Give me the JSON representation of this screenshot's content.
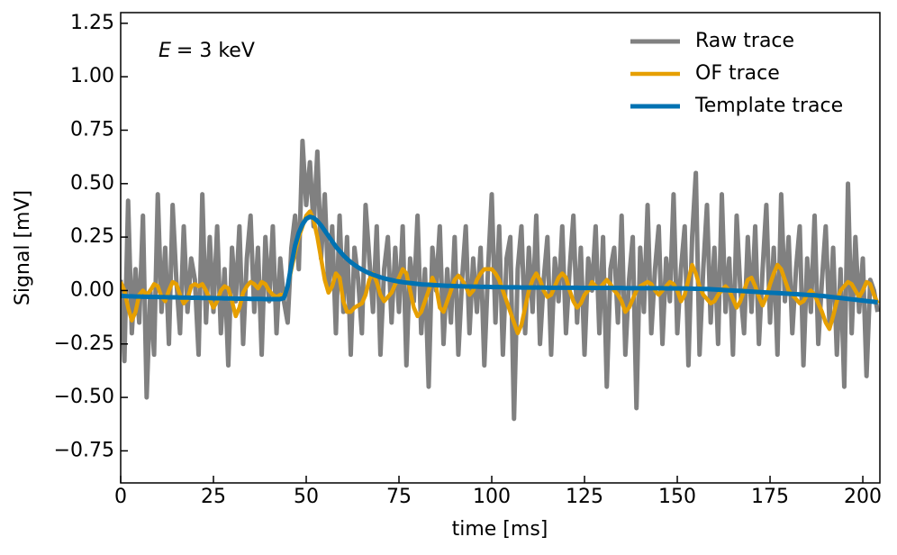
{
  "chart_data": {
    "type": "line",
    "xlabel": "time [ms]",
    "ylabel": "Signal [mV]",
    "annotation": {
      "variable": "E",
      "text": "= 3 keV"
    },
    "legend": "upper right",
    "xlim": [
      0,
      204.6
    ],
    "ylim": [
      -0.9,
      1.3
    ],
    "xticks": [
      0,
      25,
      50,
      75,
      100,
      125,
      150,
      175,
      200
    ],
    "yticks": [
      {
        "value": -0.75,
        "label": "−0.75"
      },
      {
        "value": -0.5,
        "label": "−0.50"
      },
      {
        "value": -0.25,
        "label": "−0.25"
      },
      {
        "value": 0,
        "label": "0.00"
      },
      {
        "value": 0.25,
        "label": "0.25"
      },
      {
        "value": 0.5,
        "label": "0.50"
      },
      {
        "value": 0.75,
        "label": "0.75"
      },
      {
        "value": 1,
        "label": "1.00"
      },
      {
        "value": 1.25,
        "label": "1.25"
      }
    ],
    "x": [
      0,
      1,
      2,
      3,
      4,
      5,
      6,
      7,
      8,
      9,
      10,
      11,
      12,
      13,
      14,
      15,
      16,
      17,
      18,
      19,
      20,
      21,
      22,
      23,
      24,
      25,
      26,
      27,
      28,
      29,
      30,
      31,
      32,
      33,
      34,
      35,
      36,
      37,
      38,
      39,
      40,
      41,
      42,
      43,
      44,
      45,
      46,
      47,
      48,
      49,
      50,
      51,
      52,
      53,
      54,
      55,
      56,
      57,
      58,
      59,
      60,
      61,
      62,
      63,
      64,
      65,
      66,
      67,
      68,
      69,
      70,
      71,
      72,
      73,
      74,
      75,
      76,
      77,
      78,
      79,
      80,
      81,
      82,
      83,
      84,
      85,
      86,
      87,
      88,
      89,
      90,
      91,
      92,
      93,
      94,
      95,
      96,
      97,
      98,
      99,
      100,
      101,
      102,
      103,
      104,
      105,
      106,
      107,
      108,
      109,
      110,
      111,
      112,
      113,
      114,
      115,
      116,
      117,
      118,
      119,
      120,
      121,
      122,
      123,
      124,
      125,
      126,
      127,
      128,
      129,
      130,
      131,
      132,
      133,
      134,
      135,
      136,
      137,
      138,
      139,
      140,
      141,
      142,
      143,
      144,
      145,
      146,
      147,
      148,
      149,
      150,
      151,
      152,
      153,
      154,
      155,
      156,
      157,
      158,
      159,
      160,
      161,
      162,
      163,
      164,
      165,
      166,
      167,
      168,
      169,
      170,
      171,
      172,
      173,
      174,
      175,
      176,
      177,
      178,
      179,
      180,
      181,
      182,
      183,
      184,
      185,
      186,
      187,
      188,
      189,
      190,
      191,
      192,
      193,
      194,
      195,
      196,
      197,
      198,
      199,
      200,
      201,
      202,
      203,
      204
    ],
    "series": [
      {
        "name": "Raw trace",
        "color": "#808080",
        "width": 5,
        "values": [
          0.05,
          -0.33,
          0.42,
          -0.2,
          0.1,
          -0.15,
          0.35,
          -0.5,
          0.0,
          -0.3,
          0.45,
          -0.1,
          0.2,
          -0.25,
          0.4,
          0.05,
          -0.2,
          0.3,
          -0.1,
          0.15,
          0.05,
          -0.3,
          0.45,
          -0.15,
          0.25,
          -0.1,
          0.3,
          -0.2,
          0.1,
          -0.35,
          0.2,
          -0.05,
          0.3,
          -0.25,
          0.15,
          0.35,
          -0.1,
          0.2,
          -0.3,
          0.25,
          -0.05,
          0.3,
          -0.2,
          0.15,
          -0.05,
          -0.15,
          0.2,
          0.35,
          0.1,
          0.7,
          0.4,
          0.6,
          0.3,
          0.65,
          0.15,
          0.45,
          0.0,
          0.3,
          -0.2,
          0.35,
          -0.1,
          0.25,
          -0.3,
          0.2,
          0.05,
          -0.2,
          0.4,
          0.15,
          -0.1,
          0.3,
          -0.3,
          0.1,
          0.25,
          -0.15,
          0.2,
          -0.1,
          0.3,
          -0.35,
          0.15,
          -0.05,
          0.35,
          -0.2,
          0.1,
          -0.45,
          0.2,
          0.0,
          0.3,
          -0.25,
          0.1,
          -0.15,
          0.25,
          -0.3,
          0.05,
          0.3,
          -0.2,
          0.15,
          -0.1,
          0.2,
          -0.35,
          0.1,
          0.45,
          -0.15,
          0.3,
          -0.3,
          0.15,
          0.25,
          -0.6,
          0.1,
          0.3,
          -0.2,
          0.2,
          -0.1,
          0.35,
          -0.25,
          0.05,
          0.25,
          -0.3,
          0.15,
          -0.05,
          0.3,
          -0.2,
          0.1,
          0.35,
          -0.15,
          0.2,
          -0.3,
          0.15,
          0.0,
          0.3,
          -0.2,
          0.25,
          -0.45,
          0.1,
          0.2,
          -0.15,
          0.35,
          -0.3,
          0.05,
          0.25,
          -0.55,
          0.2,
          -0.1,
          0.4,
          -0.2,
          0.1,
          0.3,
          -0.25,
          0.15,
          -0.05,
          0.45,
          -0.2,
          0.1,
          0.3,
          -0.35,
          0.25,
          0.55,
          -0.3,
          0.1,
          0.4,
          -0.15,
          0.2,
          -0.25,
          0.45,
          -0.1,
          0.15,
          -0.3,
          0.35,
          0.0,
          -0.2,
          0.25,
          -0.1,
          0.3,
          -0.25,
          0.1,
          0.4,
          -0.15,
          0.2,
          -0.3,
          0.45,
          -0.05,
          0.25,
          -0.2,
          0.1,
          0.3,
          -0.35,
          0.15,
          -0.1,
          0.35,
          -0.25,
          0.05,
          0.3,
          -0.15,
          0.2,
          -0.3,
          0.1,
          -0.45,
          0.5,
          -0.2,
          0.25,
          -0.1,
          0.15,
          -0.4,
          0.05,
          0.0,
          -0.1
        ]
      },
      {
        "name": "OF trace",
        "color": "#e69f00",
        "width": 4.5,
        "values": [
          0.04,
          0.0,
          -0.08,
          -0.14,
          -0.1,
          -0.02,
          0.0,
          -0.02,
          0.0,
          0.03,
          0.02,
          -0.03,
          -0.05,
          0.0,
          0.04,
          0.03,
          -0.02,
          -0.06,
          -0.04,
          0.02,
          0.03,
          0.02,
          0.03,
          0.0,
          -0.04,
          -0.08,
          -0.05,
          0.0,
          0.02,
          0.01,
          -0.05,
          -0.12,
          -0.08,
          -0.01,
          0.02,
          0.04,
          0.03,
          0.01,
          0.04,
          0.03,
          0.0,
          -0.02,
          -0.03,
          -0.02,
          -0.02,
          0.02,
          0.1,
          0.18,
          0.25,
          0.3,
          0.35,
          0.37,
          0.33,
          0.25,
          0.15,
          0.05,
          -0.01,
          0.02,
          0.08,
          0.06,
          -0.05,
          -0.1,
          -0.1,
          -0.08,
          -0.07,
          -0.06,
          -0.02,
          0.05,
          0.08,
          0.04,
          -0.02,
          -0.05,
          -0.03,
          -0.01,
          0.03,
          0.06,
          0.1,
          0.08,
          0.0,
          -0.08,
          -0.12,
          -0.1,
          -0.05,
          0.0,
          0.06,
          0.02,
          -0.08,
          -0.1,
          -0.05,
          0.0,
          0.05,
          0.07,
          0.05,
          0.02,
          -0.02,
          0.0,
          0.05,
          0.08,
          0.1,
          0.1,
          0.1,
          0.08,
          0.05,
          0.0,
          -0.05,
          -0.1,
          -0.15,
          -0.2,
          -0.16,
          -0.08,
          0.0,
          0.05,
          0.08,
          0.05,
          0.0,
          -0.03,
          -0.02,
          0.02,
          0.06,
          0.08,
          0.06,
          0.0,
          -0.05,
          -0.08,
          -0.06,
          -0.02,
          0.0,
          0.04,
          0.02,
          0.01,
          0.03,
          0.05,
          0.03,
          0.0,
          -0.02,
          -0.05,
          -0.1,
          -0.08,
          -0.04,
          0.0,
          0.02,
          0.03,
          0.04,
          0.03,
          0.0,
          -0.02,
          0.0,
          0.02,
          0.04,
          0.03,
          0.0,
          -0.05,
          -0.02,
          0.05,
          0.12,
          0.08,
          0.02,
          -0.02,
          -0.04,
          -0.06,
          -0.05,
          -0.02,
          0.0,
          0.02,
          0.0,
          -0.04,
          -0.08,
          -0.05,
          0.0,
          0.05,
          0.06,
          0.02,
          -0.03,
          -0.07,
          -0.03,
          0.03,
          0.08,
          0.12,
          0.1,
          0.05,
          0.0,
          -0.02,
          -0.04,
          -0.06,
          -0.05,
          -0.02,
          0.0,
          -0.02,
          -0.06,
          -0.1,
          -0.15,
          -0.18,
          -0.12,
          -0.05,
          0.0,
          0.02,
          0.04,
          0.03,
          0.0,
          -0.03,
          0.0,
          0.04,
          0.03,
          -0.02,
          -0.06
        ]
      },
      {
        "name": "Template trace",
        "color": "#0072b2",
        "width": 5,
        "values": [
          -0.025,
          -0.026,
          -0.027,
          -0.027,
          -0.028,
          -0.028,
          -0.029,
          -0.029,
          -0.03,
          -0.03,
          -0.03,
          -0.031,
          -0.031,
          -0.032,
          -0.032,
          -0.032,
          -0.033,
          -0.033,
          -0.033,
          -0.034,
          -0.034,
          -0.034,
          -0.035,
          -0.035,
          -0.035,
          -0.036,
          -0.036,
          -0.036,
          -0.037,
          -0.037,
          -0.037,
          -0.038,
          -0.038,
          -0.038,
          -0.038,
          -0.039,
          -0.039,
          -0.039,
          -0.039,
          -0.04,
          -0.04,
          -0.04,
          -0.04,
          -0.04,
          -0.035,
          0.02,
          0.12,
          0.21,
          0.27,
          0.31,
          0.335,
          0.345,
          0.34,
          0.325,
          0.305,
          0.28,
          0.255,
          0.23,
          0.205,
          0.185,
          0.165,
          0.148,
          0.133,
          0.12,
          0.108,
          0.098,
          0.089,
          0.081,
          0.074,
          0.068,
          0.062,
          0.057,
          0.053,
          0.049,
          0.045,
          0.042,
          0.039,
          0.037,
          0.035,
          0.033,
          0.031,
          0.029,
          0.028,
          0.027,
          0.026,
          0.025,
          0.024,
          0.023,
          0.022,
          0.022,
          0.021,
          0.02,
          0.02,
          0.019,
          0.019,
          0.018,
          0.018,
          0.017,
          0.017,
          0.017,
          0.016,
          0.016,
          0.016,
          0.015,
          0.015,
          0.015,
          0.015,
          0.015,
          0.014,
          0.014,
          0.014,
          0.014,
          0.014,
          0.014,
          0.014,
          0.013,
          0.013,
          0.013,
          0.013,
          0.013,
          0.013,
          0.013,
          0.013,
          0.013,
          0.012,
          0.012,
          0.012,
          0.012,
          0.012,
          0.012,
          0.012,
          0.012,
          0.012,
          0.012,
          0.012,
          0.012,
          0.011,
          0.011,
          0.011,
          0.011,
          0.011,
          0.011,
          0.011,
          0.011,
          0.011,
          0.011,
          0.011,
          0.01,
          0.01,
          0.01,
          0.01,
          0.01,
          0.01,
          0.009,
          0.009,
          0.008,
          0.008,
          0.007,
          0.007,
          0.006,
          0.005,
          0.004,
          0.003,
          0.002,
          0.001,
          0.0,
          -0.001,
          -0.002,
          -0.003,
          -0.004,
          -0.005,
          -0.006,
          -0.007,
          -0.008,
          -0.009,
          -0.01,
          -0.011,
          -0.012,
          -0.013,
          -0.014,
          -0.015,
          -0.016,
          -0.017,
          -0.018,
          -0.019,
          -0.02,
          -0.021,
          -0.022,
          -0.024,
          -0.025,
          -0.027,
          -0.029,
          -0.031,
          -0.033,
          -0.035,
          -0.037,
          -0.039,
          -0.041,
          -0.043,
          -0.045,
          -0.047,
          -0.049,
          -0.051,
          -0.053,
          -0.055
        ]
      }
    ]
  }
}
